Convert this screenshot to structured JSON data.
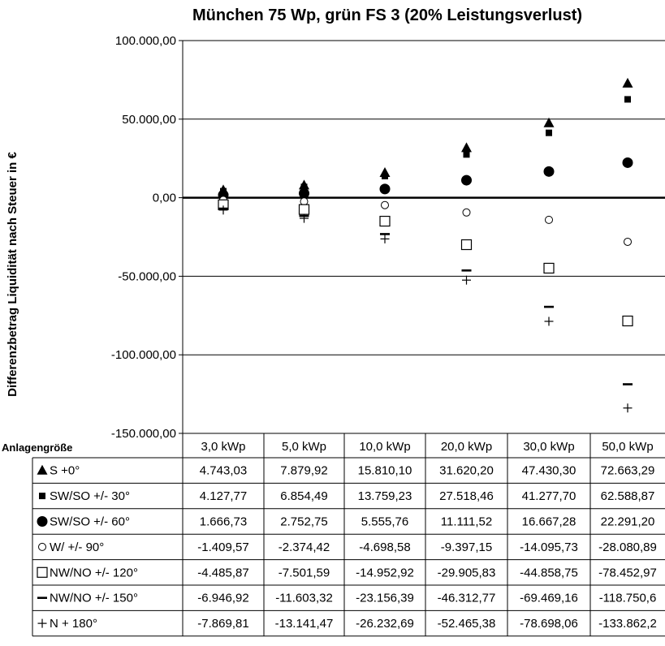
{
  "chart_data": {
    "type": "scatter",
    "title": "München 75 Wp, grün FS 3 (20% Leistungsverlust)",
    "ylabel": "Differenzbetrag Liquidität nach Steuer in €",
    "xlabel": "Anlagengröße",
    "ylim": [
      -150000,
      100000
    ],
    "yticks": [
      100000,
      50000,
      0,
      -50000,
      -100000,
      -150000
    ],
    "ytick_labels": [
      "100.000,00",
      "50.000,00",
      "0,00",
      "-50.000,00",
      "-100.000,00",
      "-150.000,00"
    ],
    "categories": [
      "3,0 kWp",
      "5,0 kWp",
      "10,0 kWp",
      "20,0 kWp",
      "30,0 kWp",
      "50,0 kWp"
    ],
    "grid": "horizontal",
    "legend": "data-table",
    "series": [
      {
        "name": "S +0°",
        "marker": "triangle-filled",
        "values": [
          4743.03,
          7879.92,
          15810.1,
          31620.2,
          47430.3,
          72663.29
        ],
        "labels": [
          "4.743,03",
          "7.879,92",
          "15.810,10",
          "31.620,20",
          "47.430,30",
          "72.663,29"
        ]
      },
      {
        "name": "SW/SO +/- 30°",
        "marker": "square-filled-small",
        "values": [
          4127.77,
          6854.49,
          13759.23,
          27518.46,
          41277.7,
          62588.87
        ],
        "labels": [
          "4.127,77",
          "6.854,49",
          "13.759,23",
          "27.518,46",
          "41.277,70",
          "62.588,87"
        ]
      },
      {
        "name": "SW/SO +/- 60°",
        "marker": "circle-filled",
        "values": [
          1666.73,
          2752.75,
          5555.76,
          11111.52,
          16667.28,
          22291.2
        ],
        "labels": [
          "1.666,73",
          "2.752,75",
          "5.555,76",
          "11.111,52",
          "16.667,28",
          "22.291,20"
        ]
      },
      {
        "name": "W/ +/- 90°",
        "marker": "circle-open",
        "values": [
          -1409.57,
          -2374.42,
          -4698.58,
          -9397.15,
          -14095.73,
          -28080.89
        ],
        "labels": [
          "-1.409,57",
          "-2.374,42",
          "-4.698,58",
          "-9.397,15",
          "-14.095,73",
          "-28.080,89"
        ]
      },
      {
        "name": "NW/NO +/- 120°",
        "marker": "square-open",
        "values": [
          -4485.87,
          -7501.59,
          -14952.92,
          -29905.83,
          -44858.75,
          -78452.97
        ],
        "labels": [
          "-4.485,87",
          "-7.501,59",
          "-14.952,92",
          "-29.905,83",
          "-44.858,75",
          "-78.452,97"
        ]
      },
      {
        "name": "NW/NO +/- 150°",
        "marker": "dash",
        "values": [
          -6946.92,
          -11603.32,
          -23156.39,
          -46312.77,
          -69469.16,
          -118750.6
        ],
        "labels": [
          "-6.946,92",
          "-11.603,32",
          "-23.156,39",
          "-46.312,77",
          "-69.469,16",
          "-118.750,6"
        ]
      },
      {
        "name": "N + 180°",
        "marker": "plus",
        "values": [
          -7869.81,
          -13141.47,
          -26232.69,
          -52465.38,
          -78698.06,
          -133862.2
        ],
        "labels": [
          "-7.869,81",
          "-13.141,47",
          "-26.232,69",
          "-52.465,38",
          "-78.698,06",
          "-133.862,2"
        ]
      }
    ]
  }
}
